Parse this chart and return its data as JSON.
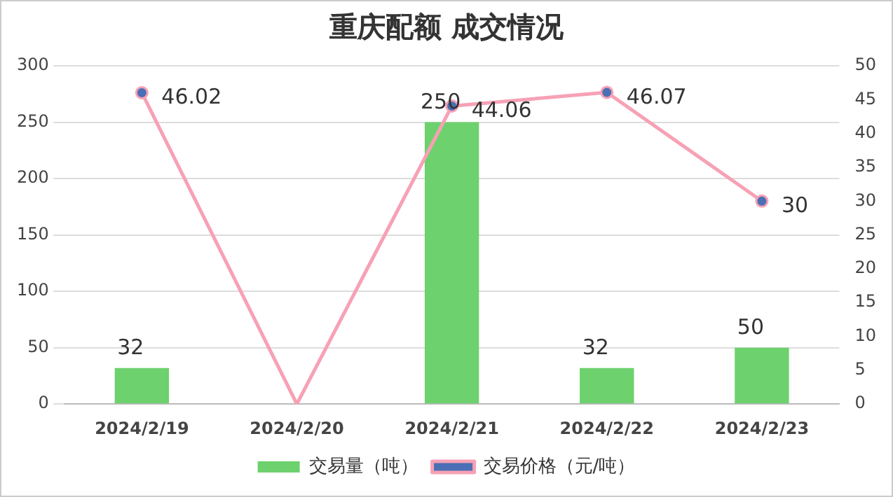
{
  "chart_data": {
    "type": "bar",
    "title": "重庆配额 成交情况",
    "categories": [
      "2024/2/19",
      "2024/2/20",
      "2024/2/21",
      "2024/2/22",
      "2024/2/23"
    ],
    "series": [
      {
        "name": "交易量（吨）",
        "color": "#6dd16d",
        "values": [
          32,
          null,
          250,
          32,
          50
        ],
        "value_labels": [
          "32",
          null,
          "250",
          "32",
          "50"
        ]
      },
      {
        "name": "交易价格（元/吨）",
        "type": "line",
        "axis": "y2",
        "color": "#f7a1b5",
        "values": [
          46.02,
          0,
          44.06,
          46.07,
          30
        ],
        "value_labels": [
          "46.02",
          null,
          "44.06",
          "46.07",
          "30"
        ]
      }
    ],
    "ylim": [
      0,
      300
    ],
    "yticks": [
      0,
      50,
      100,
      150,
      200,
      250,
      300
    ],
    "y2lim": [
      0,
      50
    ],
    "y2ticks": [
      0,
      5,
      10,
      15,
      20,
      25,
      30,
      35,
      40,
      45,
      50
    ],
    "grid": "y",
    "legend": "bottom",
    "marker": "circle"
  }
}
